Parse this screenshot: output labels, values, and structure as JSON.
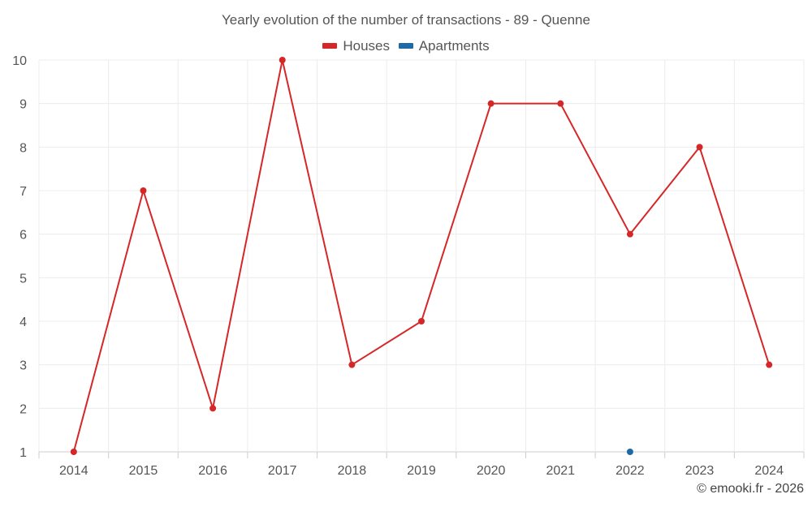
{
  "chart_data": {
    "type": "line",
    "title": "Yearly evolution of the number of transactions - 89 - Quenne",
    "categories": [
      "2014",
      "2015",
      "2016",
      "2017",
      "2018",
      "2019",
      "2020",
      "2021",
      "2022",
      "2023",
      "2024"
    ],
    "series": [
      {
        "name": "Houses",
        "color": "#d62728",
        "values": [
          1,
          7,
          2,
          10,
          3,
          4,
          9,
          9,
          6,
          8,
          3
        ]
      },
      {
        "name": "Apartments",
        "color": "#1f6aa5",
        "values": [
          null,
          null,
          null,
          null,
          null,
          null,
          null,
          null,
          1,
          null,
          null
        ]
      }
    ],
    "ylim": [
      1,
      10
    ],
    "yticks": [
      "1",
      "2",
      "3",
      "4",
      "5",
      "6",
      "7",
      "8",
      "9",
      "10"
    ],
    "grid": true,
    "legend_position": "top-center",
    "xlabel": "",
    "ylabel": ""
  },
  "credit": "© emooki.fr - 2026"
}
